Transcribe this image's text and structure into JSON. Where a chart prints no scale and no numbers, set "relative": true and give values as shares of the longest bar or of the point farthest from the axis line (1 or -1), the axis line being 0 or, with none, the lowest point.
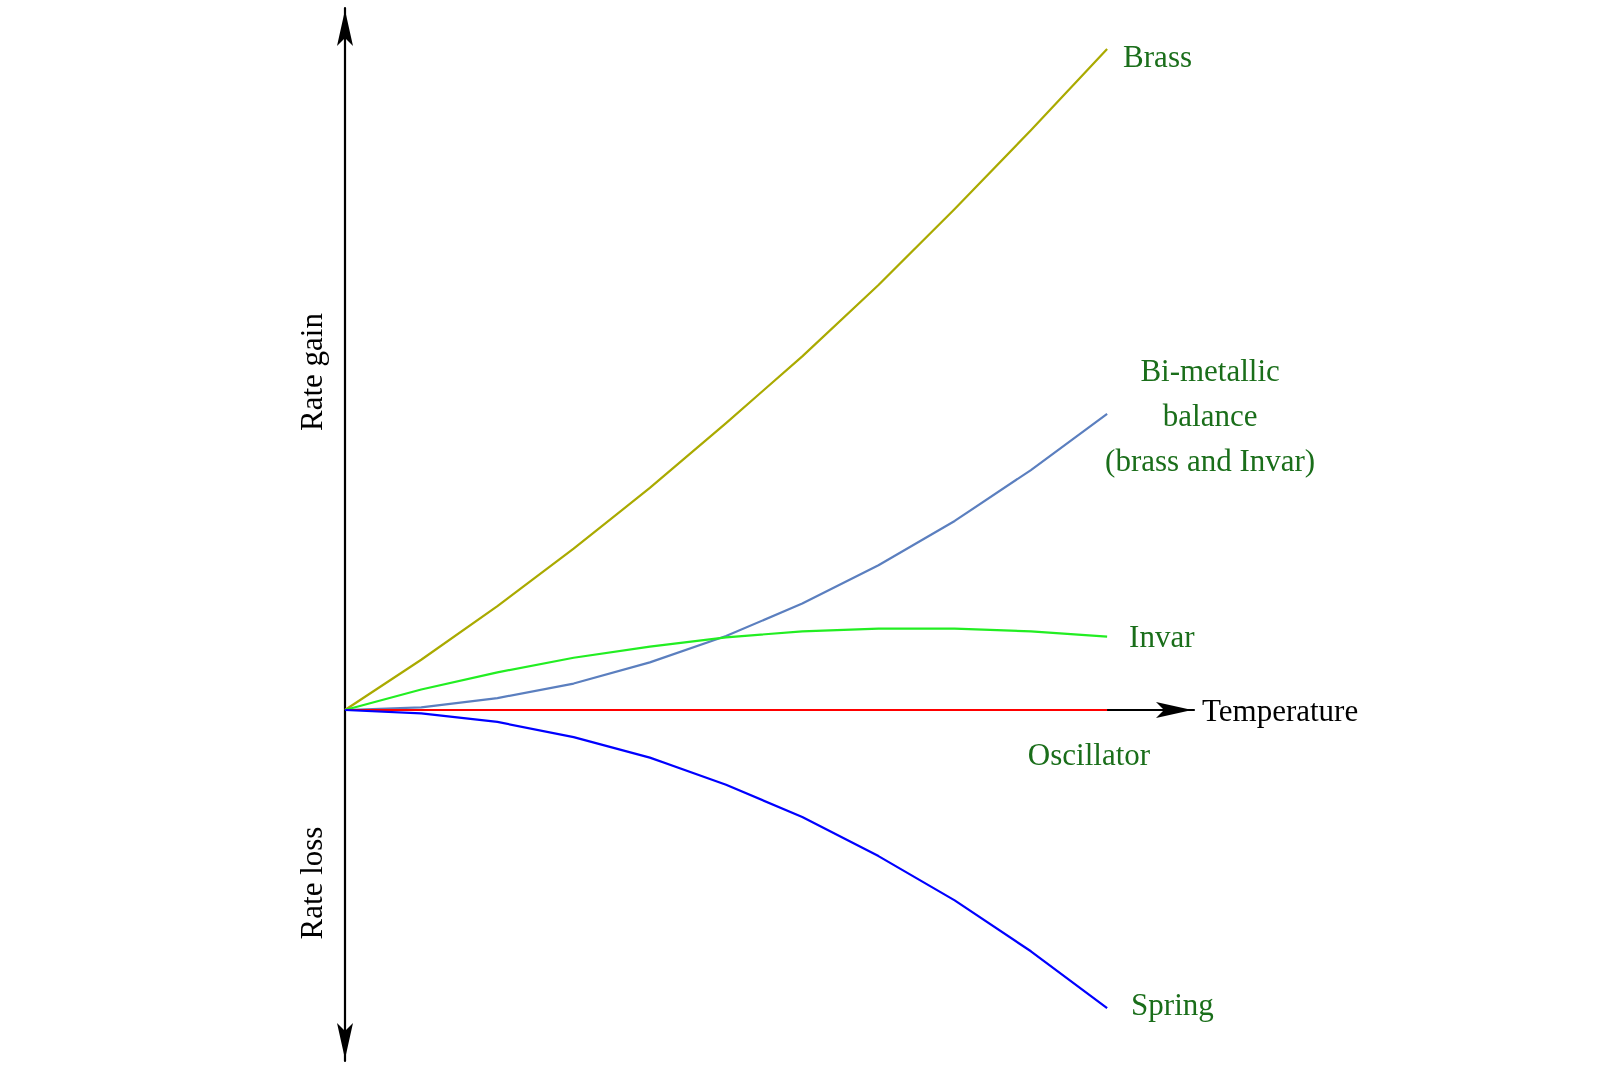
{
  "chart_data": {
    "type": "line",
    "relative": true,
    "xlabel": "Temperature",
    "ylabel": "Rate gain",
    "annotations": [
      "Rate loss"
    ],
    "categories": [
      null,
      null,
      null,
      null,
      null,
      null,
      null,
      null,
      null,
      null,
      null
    ],
    "series": [
      {
        "name": "Brass",
        "color": "#aaaa00",
        "values": [
          0,
          0.076,
          0.157,
          0.244,
          0.336,
          0.434,
          0.535,
          0.643,
          0.758,
          0.877,
          1
        ]
      },
      {
        "name": "Bi-metallic\nbalance\n(brass and Invar)",
        "color": "#5b7fbf",
        "values": [
          0,
          0.004,
          0.018,
          0.04,
          0.072,
          0.112,
          0.161,
          0.219,
          0.286,
          0.363,
          0.448
        ]
      },
      {
        "name": "Invar",
        "color": "#22ee22",
        "values": [
          0,
          0.031,
          0.057,
          0.079,
          0.096,
          0.11,
          0.119,
          0.123,
          0.123,
          0.119,
          0.111
        ]
      },
      {
        "name": "Oscillator",
        "color": "#ff0000",
        "values": [
          0,
          0,
          0,
          0,
          0,
          0,
          0,
          0,
          0,
          0,
          0
        ]
      },
      {
        "name": "Spring",
        "color": "#0000ff",
        "values": [
          0,
          -0.005,
          -0.018,
          -0.041,
          -0.072,
          -0.113,
          -0.162,
          -0.221,
          -0.288,
          -0.365,
          -0.451
        ]
      }
    ],
    "grid": false,
    "legend": false,
    "marker": "none",
    "line_style": "solid"
  }
}
